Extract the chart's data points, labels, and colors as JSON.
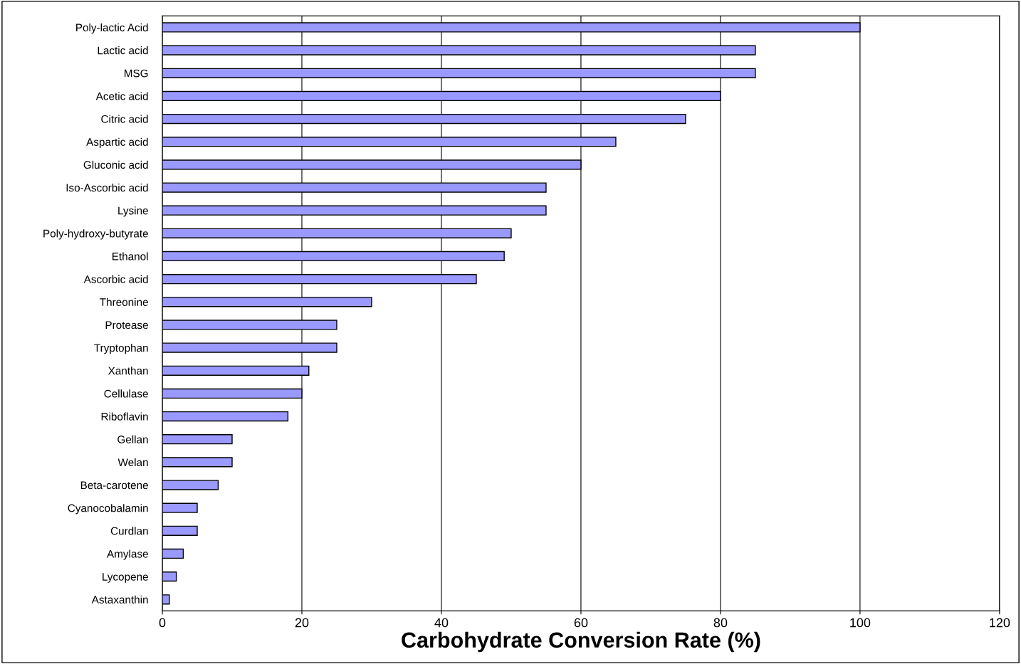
{
  "chart_data": {
    "type": "bar",
    "orientation": "horizontal",
    "xlabel": "Carbohydrate Conversion Rate (%)",
    "categories": [
      "Poly-lactic Acid",
      "Lactic acid",
      "MSG",
      "Acetic acid",
      "Citric acid",
      "Aspartic acid",
      "Gluconic acid",
      "Iso-Ascorbic acid",
      "Lysine",
      "Poly-hydroxy-butyrate",
      "Ethanol",
      "Ascorbic acid",
      "Threonine",
      "Protease",
      "Tryptophan",
      "Xanthan",
      "Cellulase",
      "Riboflavin",
      "Gellan",
      "Welan",
      "Beta-carotene",
      "Cyanocobalamin",
      "Curdlan",
      "Amylase",
      "Lycopene",
      "Astaxanthin"
    ],
    "values": [
      100,
      85,
      85,
      80,
      75,
      65,
      60,
      55,
      55,
      50,
      49,
      45,
      30,
      25,
      25,
      21,
      20,
      18,
      10,
      10,
      8,
      5,
      5,
      3,
      2,
      1
    ],
    "color": "#9999ff",
    "xlim": [
      0,
      120
    ],
    "xticks": [
      0,
      20,
      40,
      60,
      80,
      100,
      120
    ],
    "grid": "x"
  }
}
